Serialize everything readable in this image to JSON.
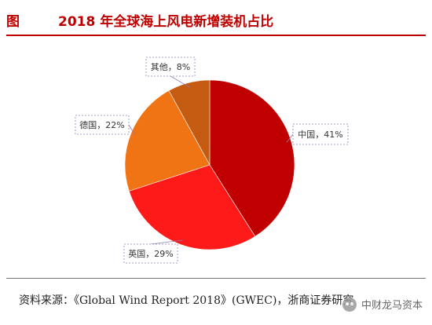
{
  "header": {
    "figure_label": "图",
    "title": "2018 年全球海上风电新增装机占比"
  },
  "chart_data": {
    "type": "pie",
    "title": "2018 年全球海上风电新增装机占比",
    "slices": [
      {
        "name": "中国",
        "value": 41,
        "label": "中国，41%",
        "color": "#c00000"
      },
      {
        "name": "英国",
        "value": 29,
        "label": "英国，29%",
        "color": "#ff1a1a"
      },
      {
        "name": "德国",
        "value": 22,
        "label": "德国，22%",
        "color": "#f07314"
      },
      {
        "name": "其他",
        "value": 8,
        "label": "其他，8%",
        "color": "#c55a11"
      }
    ],
    "start_angle_deg": 0,
    "direction": "clockwise",
    "label_placement": "outside-with-leader-lines"
  },
  "source": {
    "text": "资料来源：《Global Wind Report 2018》(GWEC)，浙商证券研究"
  },
  "watermark": {
    "text": "中财龙马资本"
  }
}
